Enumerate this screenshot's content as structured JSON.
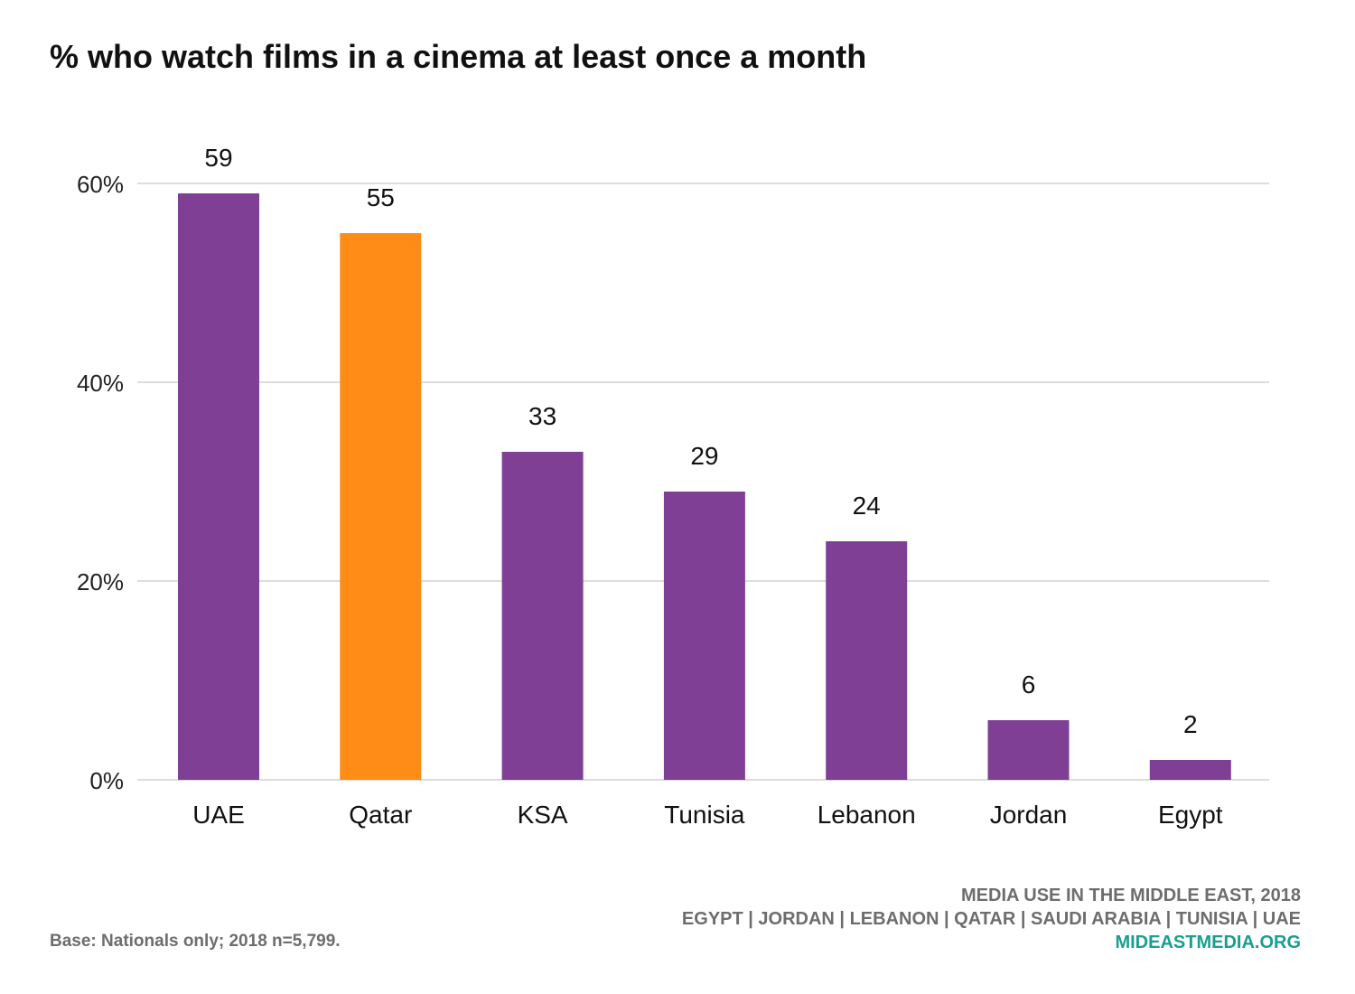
{
  "title": "% who watch films in a cinema at least once a month",
  "chart_data": {
    "type": "bar",
    "categories": [
      "UAE",
      "Qatar",
      "KSA",
      "Tunisia",
      "Lebanon",
      "Jordan",
      "Egypt"
    ],
    "values": [
      59,
      55,
      33,
      29,
      24,
      6,
      2
    ],
    "value_labels": [
      "59",
      "55",
      "33",
      "29",
      "24",
      "6",
      "2"
    ],
    "bar_colors": [
      "#7f3f94",
      "#ff8c17",
      "#7f3f94",
      "#7f3f94",
      "#7f3f94",
      "#7f3f94",
      "#7f3f94"
    ],
    "yticks": [
      0,
      20,
      40,
      60
    ],
    "ytick_labels": [
      "0%",
      "20%",
      "40%",
      "60%"
    ],
    "ylim": [
      0,
      60
    ],
    "grid": true,
    "xlabel": "",
    "ylabel": ""
  },
  "footer": {
    "line1": "MEDIA USE IN THE MIDDLE EAST, 2018",
    "line2": "EGYPT | JORDAN | LEBANON | QATAR | SAUDI ARABIA | TUNISIA | UAE",
    "site": "MIDEASTMEDIA.ORG",
    "base_note": "Base: Nationals only; 2018 n=5,799."
  },
  "colors": {
    "primary_bar": "#7f3f94",
    "highlight_bar": "#ff8c17",
    "gridline": "#dddddd",
    "site_link": "#1a9e8f"
  }
}
